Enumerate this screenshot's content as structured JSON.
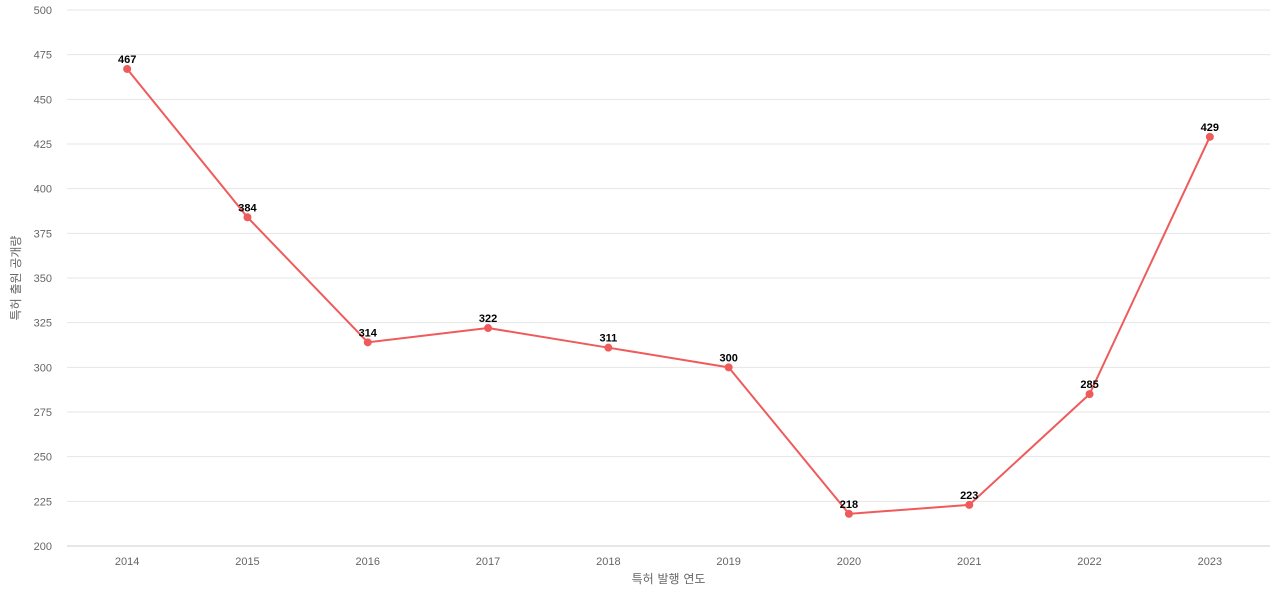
{
  "chart_data": {
    "type": "line",
    "title": "",
    "xlabel": "특허 발행 연도",
    "ylabel": "특허 출원 공개량",
    "x": [
      "2014",
      "2015",
      "2016",
      "2017",
      "2018",
      "2019",
      "2020",
      "2021",
      "2022",
      "2023"
    ],
    "series": [
      {
        "values": [
          467,
          384,
          314,
          322,
          311,
          300,
          218,
          223,
          285,
          429
        ],
        "color": "#ef5b5b"
      }
    ],
    "ylim": [
      200,
      500
    ],
    "yticks": [
      200,
      225,
      250,
      275,
      300,
      325,
      350,
      375,
      400,
      425,
      450,
      475,
      500
    ],
    "grid": true,
    "legend": "none",
    "data_labels": true
  }
}
